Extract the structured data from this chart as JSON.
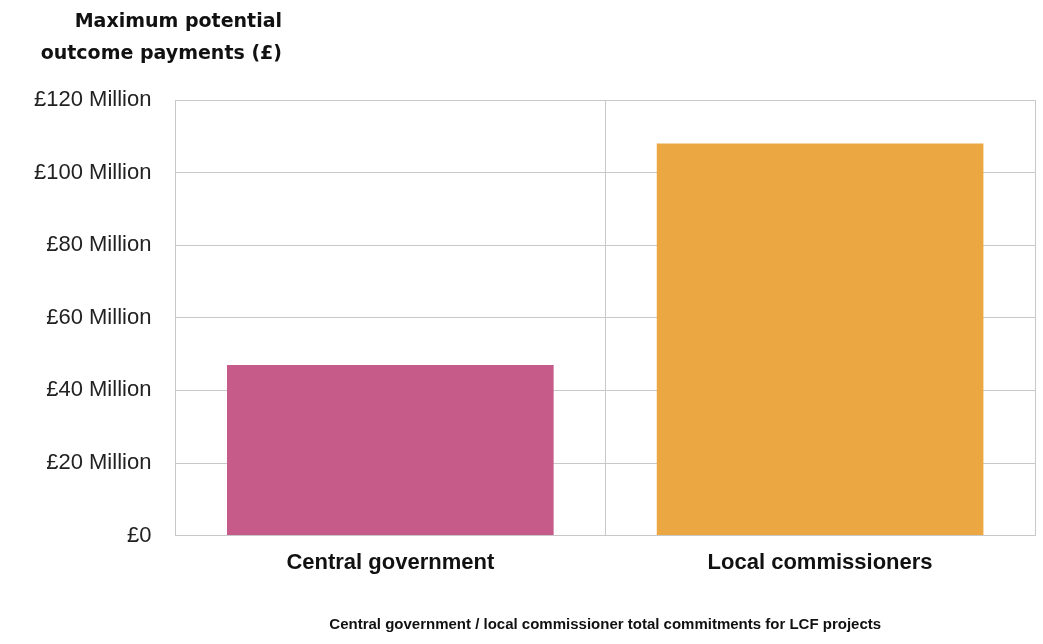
{
  "chart_data": {
    "type": "bar",
    "ylabel": "Maximum potential outcome payments (£)",
    "xlabel": "Central government / local commissioner total commitments for LCF projects",
    "categories": [
      "Central government",
      "Local commissioners"
    ],
    "values": [
      47,
      108
    ],
    "colors": [
      "#c65a89",
      "#eba842"
    ],
    "ylim": [
      0,
      120
    ],
    "yticks": [
      {
        "value": 0,
        "label": "£0"
      },
      {
        "value": 20,
        "label": "£20 Million"
      },
      {
        "value": 40,
        "label": "£40 Million"
      },
      {
        "value": 60,
        "label": "£60 Million"
      },
      {
        "value": 80,
        "label": "£80 Million"
      },
      {
        "value": 100,
        "label": "£100 Million"
      },
      {
        "value": 120,
        "label": "£120 Million"
      }
    ],
    "grid": true,
    "legend": false
  }
}
